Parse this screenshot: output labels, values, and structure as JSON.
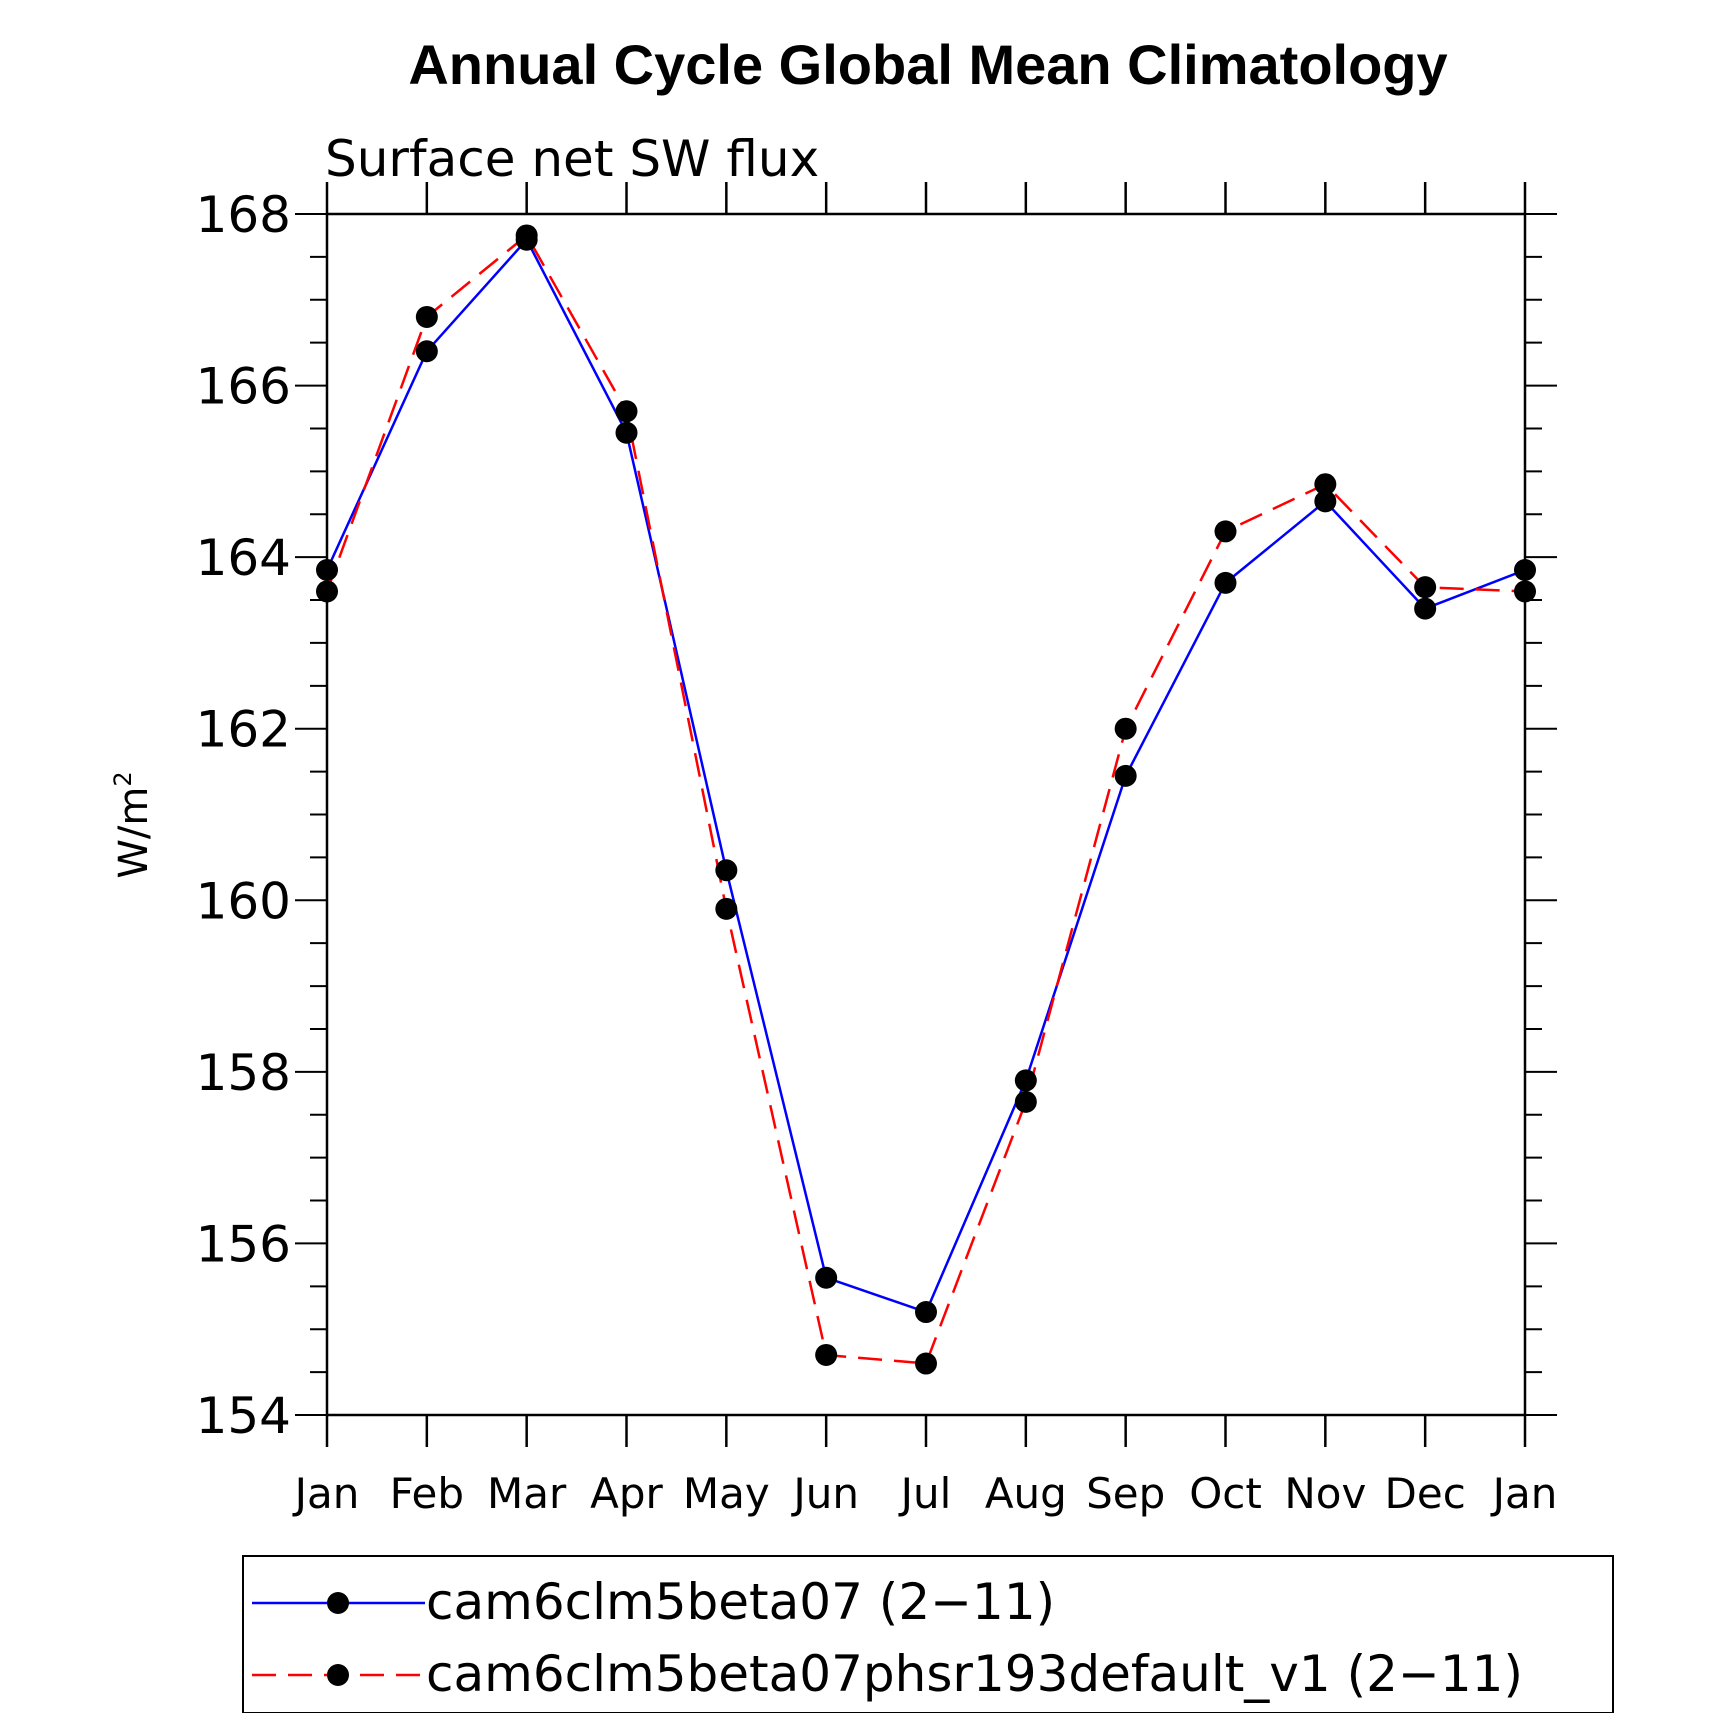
{
  "chart_data": {
    "type": "line",
    "title": "Annual Cycle Global Mean Climatology",
    "subtitle": "Surface net SW flux",
    "xlabel": "",
    "ylabel": "W/m",
    "ylabel_superscript": "2",
    "categories": [
      "Jan",
      "Feb",
      "Mar",
      "Apr",
      "May",
      "Jun",
      "Jul",
      "Aug",
      "Sep",
      "Oct",
      "Nov",
      "Dec",
      "Jan"
    ],
    "ylim": [
      154,
      168
    ],
    "yticks": [
      154,
      156,
      158,
      160,
      162,
      164,
      166,
      168
    ],
    "grid": false,
    "legend_position": "bottom",
    "series": [
      {
        "name": "cam6clm5beta07 (2−11)",
        "color": "#0000ff",
        "line_style": "solid",
        "marker": "filled-circle",
        "values": [
          163.85,
          166.4,
          167.7,
          165.45,
          160.35,
          155.6,
          155.2,
          157.9,
          161.45,
          163.7,
          164.65,
          163.4,
          163.85
        ]
      },
      {
        "name": "cam6clm5beta07phsr193default_v1 (2−11)",
        "color": "#ff0000",
        "line_style": "dashed",
        "marker": "filled-circle",
        "values": [
          163.6,
          166.8,
          167.75,
          165.7,
          159.9,
          154.7,
          154.6,
          157.65,
          162.0,
          164.3,
          164.85,
          163.65,
          163.6
        ]
      }
    ]
  }
}
